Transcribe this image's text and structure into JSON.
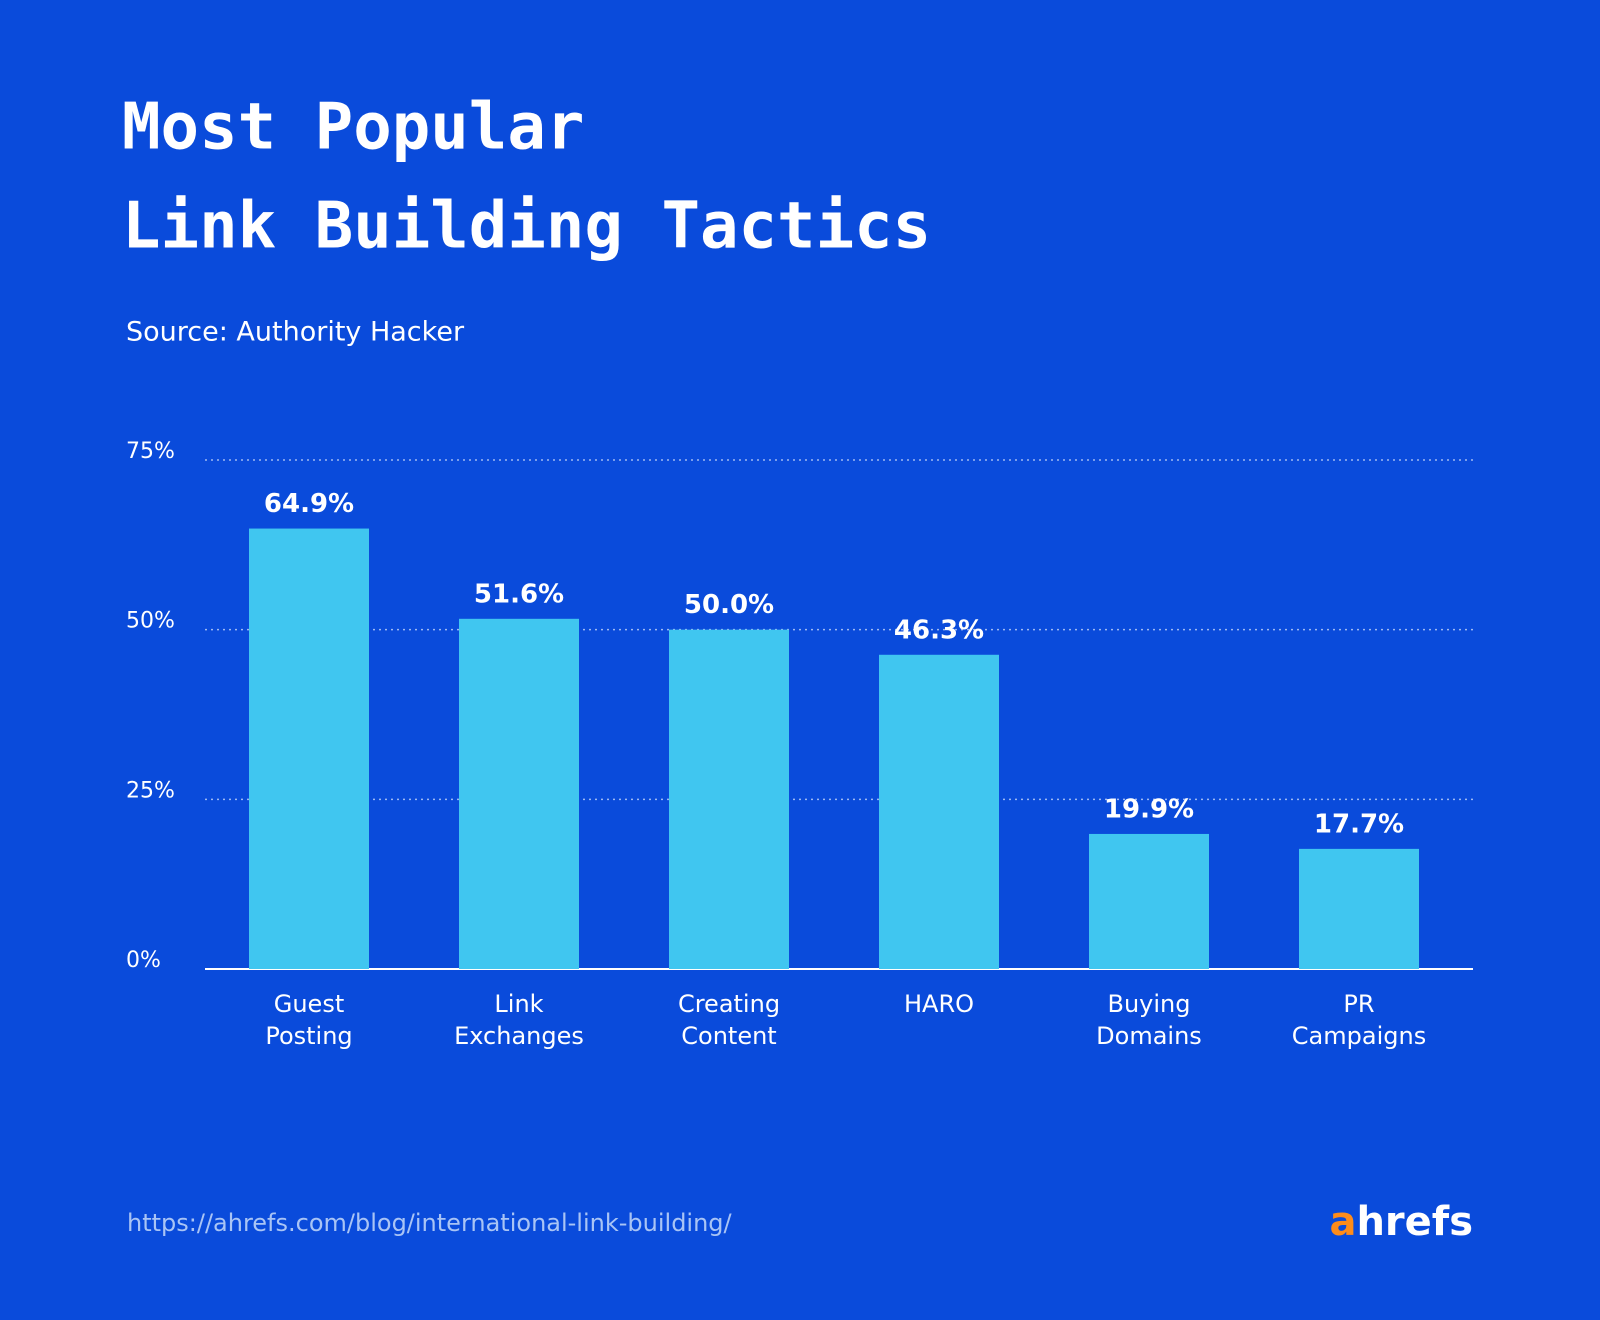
{
  "chart_data": {
    "type": "bar",
    "title": [
      "Most Popular",
      "Link Building Tactics"
    ],
    "subtitle": "Source: Authority Hacker",
    "categories": [
      [
        "Guest",
        "Posting"
      ],
      [
        "Link",
        "Exchanges"
      ],
      [
        "Creating",
        "Content"
      ],
      [
        "HARO"
      ],
      [
        "Buying",
        "Domains"
      ],
      [
        "PR",
        "Campaigns"
      ]
    ],
    "values": [
      64.9,
      51.6,
      50.0,
      46.3,
      19.9,
      17.7
    ],
    "value_labels": [
      "64.9%",
      "51.6%",
      "50.0%",
      "46.3%",
      "19.9%",
      "17.7%"
    ],
    "color": "#40c6f0",
    "ylim": [
      0,
      75
    ],
    "yticks": [
      {
        "value": 0,
        "label": "0%"
      },
      {
        "value": 25,
        "label": "25%"
      },
      {
        "value": 50,
        "label": "50%"
      },
      {
        "value": 75,
        "label": "75%"
      }
    ],
    "grid": true
  },
  "footer": {
    "url": "https://ahrefs.com/blog/international-link-building/",
    "logo": [
      "a",
      "hrefs"
    ]
  }
}
